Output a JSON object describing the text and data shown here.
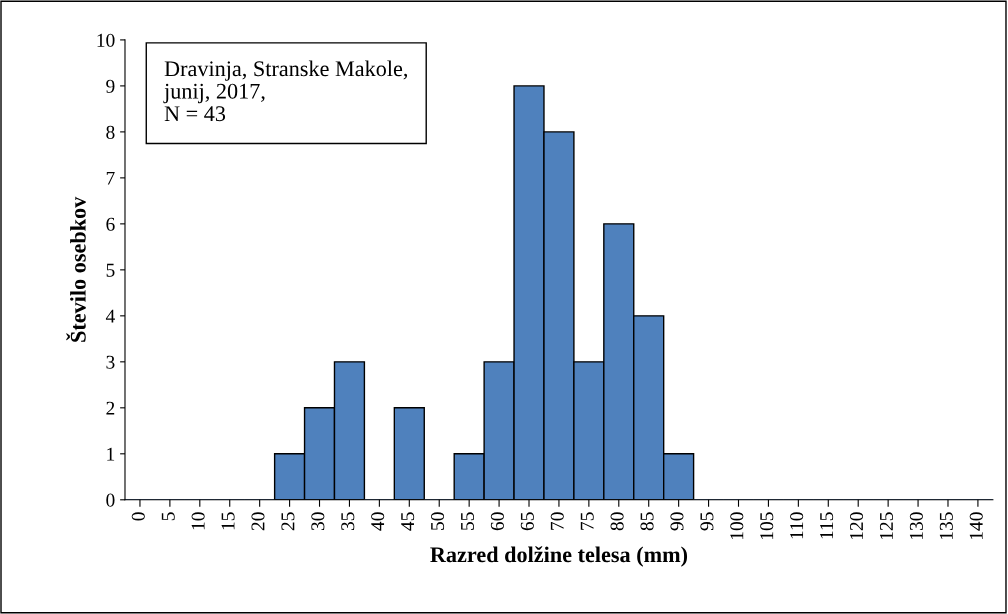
{
  "chart_data": {
    "type": "bar",
    "xlabel": "Razred dolžine telesa (mm)",
    "ylabel": "Število osebkov",
    "categories": [
      "0",
      "5",
      "10",
      "15",
      "20",
      "25",
      "30",
      "35",
      "40",
      "45",
      "50",
      "55",
      "60",
      "65",
      "70",
      "75",
      "80",
      "85",
      "90",
      "95",
      "100",
      "105",
      "110",
      "115",
      "120",
      "125",
      "130",
      "135",
      "140"
    ],
    "values": [
      0,
      0,
      0,
      0,
      0,
      1,
      2,
      3,
      0,
      2,
      0,
      1,
      3,
      9,
      8,
      3,
      6,
      4,
      1,
      0,
      0,
      0,
      0,
      0,
      0,
      0,
      0,
      0,
      0
    ],
    "color": "#4f81bd",
    "ylim": [
      0,
      10
    ],
    "yticks": [
      0,
      1,
      2,
      3,
      4,
      5,
      6,
      7,
      8,
      9,
      10
    ],
    "grid": false,
    "annotations": [
      "Dravinja, Stranske Makole,\njunij, 2017,\nN = 43"
    ]
  }
}
